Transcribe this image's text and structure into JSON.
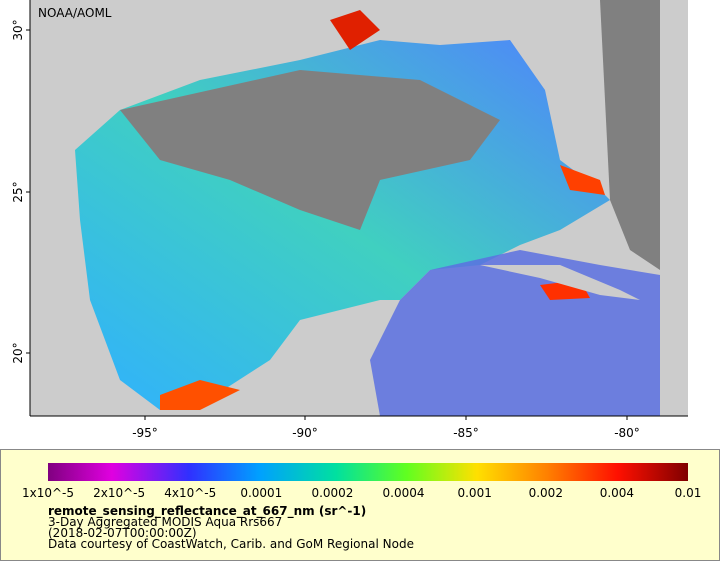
{
  "map": {
    "credit": "NOAA/AOML",
    "latitude_labels": [
      "30°",
      "25°",
      "20°"
    ],
    "longitude_labels": [
      "-95°",
      "-90°",
      "-85°",
      "-80°"
    ]
  },
  "legend": {
    "colorbar_labels": [
      "1x10^-5",
      "2x10^-5",
      "4x10^-5",
      "0.0001",
      "0.0002",
      "0.0004",
      "0.001",
      "0.002",
      "0.004",
      "0.01"
    ],
    "variable": "remote_sensing_reflectance_at_667_nm (sr^-1)",
    "lines": [
      "3-Day Aggregated MODIS Aqua Rrs667",
      "(2018-02-07T00:00:00Z)",
      "Data courtesy of CoastWatch, Carib. and GoM Regional Node"
    ]
  }
}
